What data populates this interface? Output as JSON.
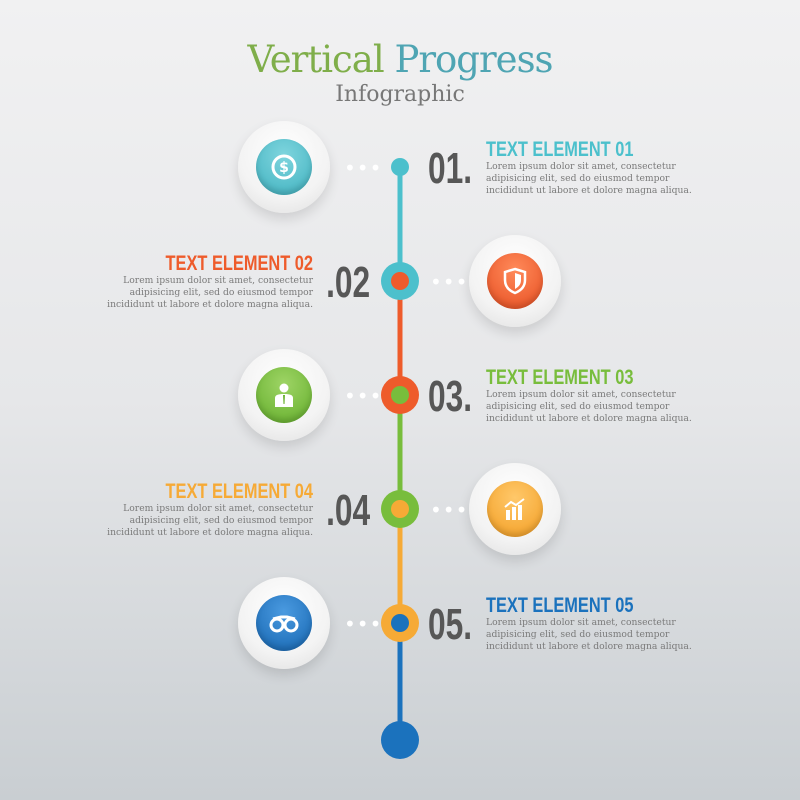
{
  "header": {
    "title_part1": "Vertical",
    "title_part2": "Progress",
    "subtitle": "Infographic"
  },
  "colors": {
    "teal": "#4cc0cc",
    "orange": "#ee5b2b",
    "green": "#78bd3c",
    "yellow": "#f6aa36",
    "blue": "#1b72bd",
    "number": "#575757"
  },
  "steps": [
    {
      "number": "01.",
      "title": "TEXT ELEMENT 01",
      "lines": [
        "Lorem ipsum dolor sit amet, consectetur",
        "adipisicing elit, sed do eiusmod tempor",
        "incididunt ut labore et dolore magna aliqua."
      ],
      "icon": "dollar-coin-icon"
    },
    {
      "number": ".02",
      "title": "TEXT ELEMENT 02",
      "lines": [
        "Lorem ipsum dolor sit amet, consectetur",
        "adipisicing elit, sed do eiusmod tempor",
        "incididunt ut labore et dolore magna aliqua."
      ],
      "icon": "shield-icon"
    },
    {
      "number": "03.",
      "title": "TEXT ELEMENT 03",
      "lines": [
        "Lorem ipsum dolor sit amet, consectetur",
        "adipisicing elit, sed do eiusmod tempor",
        "incididunt ut labore et dolore magna aliqua."
      ],
      "icon": "businessman-icon"
    },
    {
      "number": ".04",
      "title": "TEXT ELEMENT 04",
      "lines": [
        "Lorem ipsum dolor sit amet, consectetur",
        "adipisicing elit, sed do eiusmod tempor",
        "incididunt ut labore et dolore magna aliqua."
      ],
      "icon": "bar-chart-growth-icon"
    },
    {
      "number": "05.",
      "title": "TEXT ELEMENT 05",
      "lines": [
        "Lorem ipsum dolor sit amet, consectetur",
        "adipisicing elit, sed do eiusmod tempor",
        "incididunt ut labore et dolore magna aliqua."
      ],
      "icon": "binoculars-icon"
    }
  ],
  "dots": "•••"
}
